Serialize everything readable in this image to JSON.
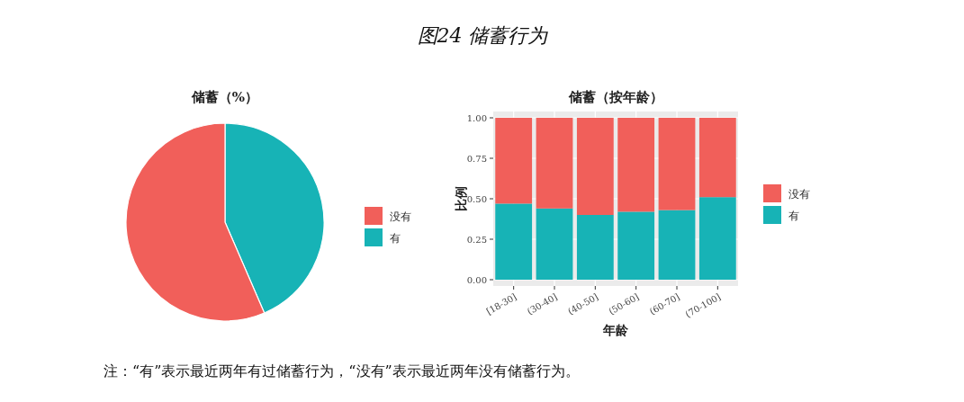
{
  "chart_data": [
    {
      "type": "pie",
      "title": "储蓄（%）",
      "categories": [
        "没有",
        "有"
      ],
      "values": [
        56.5,
        43.5
      ],
      "colors": [
        "#f15f5a",
        "#17b3b6"
      ],
      "legend": "right",
      "annotations": [
        "图24 储蓄行为",
        "注：“有”表示最近两年有过储蓄行为，“没有”表示最近两年没有储蓄行为。"
      ]
    },
    {
      "type": "bar",
      "title": "储蓄（按年龄）",
      "xlabel": "年龄",
      "ylabel": "比例",
      "categories": [
        "[18-30]",
        "(30-40]",
        "(40-50]",
        "(50-60]",
        "(60-70]",
        "(70-100]"
      ],
      "stacked": true,
      "legend": "right",
      "series": [
        {
          "name": "有",
          "color": "#17b3b6",
          "values": [
            0.47,
            0.44,
            0.4,
            0.42,
            0.43,
            0.51
          ]
        },
        {
          "name": "没有",
          "color": "#f15f5a",
          "values": [
            0.53,
            0.56,
            0.6,
            0.58,
            0.57,
            0.49
          ]
        }
      ],
      "ylim": [
        0,
        1
      ],
      "yticks": [
        {
          "value": 0,
          "label": "0.00"
        },
        {
          "value": 0.25,
          "label": "0.25"
        },
        {
          "value": 0.5,
          "label": "0.50"
        },
        {
          "value": 0.75,
          "label": "0.75"
        },
        {
          "value": 1,
          "label": "1.00"
        }
      ],
      "grid": true
    }
  ]
}
